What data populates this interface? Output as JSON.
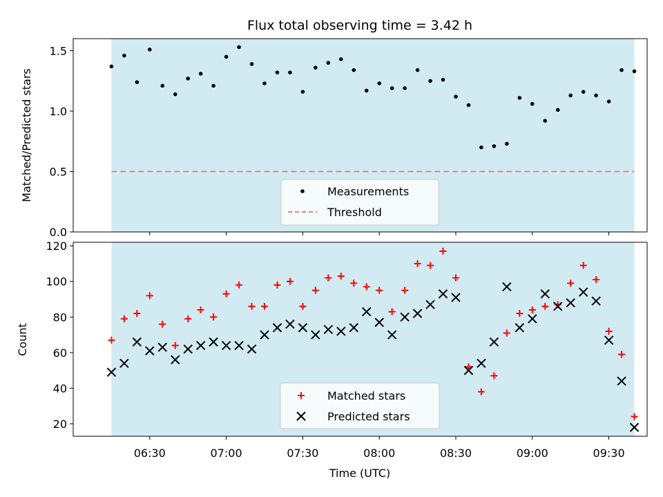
{
  "chart_data": [
    {
      "type": "scatter",
      "title": "Flux total observing time = 3.42 h",
      "xlabel": "",
      "ylabel": "Matched/Predicted stars",
      "ylim": [
        0,
        1.6
      ],
      "yticks": [
        0.0,
        0.5,
        1.0,
        1.5
      ],
      "ytick_labels": [
        "0.0",
        "0.5",
        "1.0",
        "1.5"
      ],
      "xlim": [
        "06:00",
        "09:45"
      ],
      "shaded_interval": [
        "06:15",
        "09:40"
      ],
      "shade_color": "#add8e6",
      "grid": false,
      "legend_position": "lower center",
      "series": [
        {
          "name": "Measurements",
          "marker": "dot",
          "color": "#000000",
          "x": [
            "06:15",
            "06:20",
            "06:25",
            "06:30",
            "06:35",
            "06:40",
            "06:45",
            "06:50",
            "06:55",
            "07:00",
            "07:05",
            "07:10",
            "07:15",
            "07:20",
            "07:25",
            "07:30",
            "07:35",
            "07:40",
            "07:45",
            "07:50",
            "07:55",
            "08:00",
            "08:05",
            "08:10",
            "08:15",
            "08:20",
            "08:25",
            "08:30",
            "08:35",
            "08:40",
            "08:45",
            "08:50",
            "08:55",
            "09:00",
            "09:05",
            "09:10",
            "09:15",
            "09:20",
            "09:25",
            "09:30",
            "09:35",
            "09:40"
          ],
          "y": [
            1.37,
            1.46,
            1.24,
            1.51,
            1.21,
            1.14,
            1.27,
            1.31,
            1.21,
            1.45,
            1.53,
            1.39,
            1.23,
            1.32,
            1.32,
            1.16,
            1.36,
            1.4,
            1.43,
            1.34,
            1.17,
            1.23,
            1.19,
            1.19,
            1.34,
            1.25,
            1.26,
            1.12,
            1.05,
            0.7,
            0.71,
            0.73,
            1.11,
            1.06,
            0.92,
            1.01,
            1.13,
            1.16,
            1.13,
            1.08,
            1.34,
            1.33
          ]
        },
        {
          "name": "Threshold",
          "style": "dashed",
          "color": "#f08080",
          "y_value": 0.5
        }
      ]
    },
    {
      "type": "scatter",
      "title": "",
      "xlabel": "Time (UTC)",
      "ylabel": "Count",
      "ylim": [
        13,
        122
      ],
      "yticks": [
        20,
        40,
        60,
        80,
        100,
        120
      ],
      "ytick_labels": [
        "20",
        "40",
        "60",
        "80",
        "100",
        "120"
      ],
      "xlim": [
        "06:00",
        "09:45"
      ],
      "xticks": [
        "06:30",
        "07:00",
        "07:30",
        "08:00",
        "08:30",
        "09:00",
        "09:30"
      ],
      "xtick_labels": [
        "06:30",
        "07:00",
        "07:30",
        "08:00",
        "08:30",
        "09:00",
        "09:30"
      ],
      "shaded_interval": [
        "06:15",
        "09:40"
      ],
      "shade_color": "#add8e6",
      "grid": false,
      "legend_position": "lower center",
      "series": [
        {
          "name": "Matched stars",
          "marker": "plus",
          "color": "#ff0000",
          "x": [
            "06:15",
            "06:20",
            "06:25",
            "06:30",
            "06:35",
            "06:40",
            "06:45",
            "06:50",
            "06:55",
            "07:00",
            "07:05",
            "07:10",
            "07:15",
            "07:20",
            "07:25",
            "07:30",
            "07:35",
            "07:40",
            "07:45",
            "07:50",
            "07:55",
            "08:00",
            "08:05",
            "08:10",
            "08:15",
            "08:20",
            "08:25",
            "08:30",
            "08:35",
            "08:40",
            "08:45",
            "08:50",
            "08:55",
            "09:00",
            "09:05",
            "09:10",
            "09:15",
            "09:20",
            "09:25",
            "09:30",
            "09:35",
            "09:40"
          ],
          "y": [
            67,
            79,
            82,
            92,
            76,
            64,
            79,
            84,
            80,
            93,
            98,
            86,
            86,
            98,
            100,
            86,
            95,
            102,
            103,
            99,
            97,
            95,
            83,
            95,
            110,
            109,
            117,
            102,
            52,
            38,
            47,
            71,
            82,
            84,
            86,
            87,
            99,
            109,
            101,
            72,
            59,
            24
          ]
        },
        {
          "name": "Predicted stars",
          "marker": "x",
          "color": "#000000",
          "x": [
            "06:15",
            "06:20",
            "06:25",
            "06:30",
            "06:35",
            "06:40",
            "06:45",
            "06:50",
            "06:55",
            "07:00",
            "07:05",
            "07:10",
            "07:15",
            "07:20",
            "07:25",
            "07:30",
            "07:35",
            "07:40",
            "07:45",
            "07:50",
            "07:55",
            "08:00",
            "08:05",
            "08:10",
            "08:15",
            "08:20",
            "08:25",
            "08:30",
            "08:35",
            "08:40",
            "08:45",
            "08:50",
            "08:55",
            "09:00",
            "09:05",
            "09:10",
            "09:15",
            "09:20",
            "09:25",
            "09:30",
            "09:35",
            "09:40"
          ],
          "y": [
            49,
            54,
            66,
            61,
            63,
            56,
            62,
            64,
            66,
            64,
            64,
            62,
            70,
            74,
            76,
            74,
            70,
            73,
            72,
            74,
            83,
            77,
            70,
            80,
            82,
            87,
            93,
            91,
            50,
            54,
            66,
            97,
            74,
            79,
            93,
            86,
            88,
            94,
            89,
            67,
            44,
            18
          ]
        }
      ]
    }
  ]
}
